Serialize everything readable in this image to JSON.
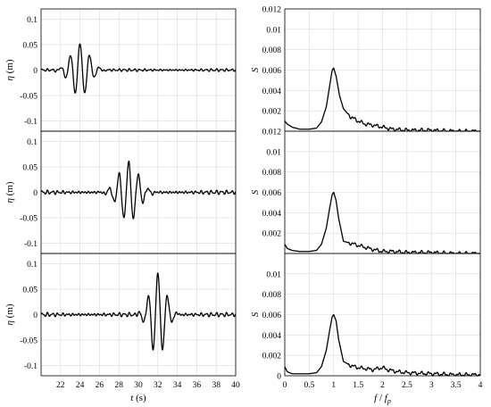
{
  "chart_data": [
    {
      "id": "time-1",
      "type": "line",
      "ylabel_sym": "η",
      "ylabel_unit": " (m)",
      "xlabel": "",
      "xlabel_unit": "",
      "xlim": [
        20,
        40
      ],
      "ylim": [
        -0.12,
        0.12
      ],
      "xticks": [
        22,
        24,
        26,
        28,
        30,
        32,
        34,
        36,
        38,
        40
      ],
      "yticks": [
        -0.1,
        -0.05,
        0,
        0.05,
        0.1
      ],
      "xticklabels": [],
      "yticklabels": [
        "-0.1",
        "-0.05",
        "0",
        "0.05",
        "0.1"
      ],
      "packet": {
        "amp": 0.052,
        "center": 24.0,
        "width": 1.3,
        "freq": 1.0,
        "noise": 0.002
      },
      "x": [
        20,
        21,
        22,
        22.5,
        23,
        23.5,
        24,
        24.5,
        25,
        25.5,
        26,
        26.5,
        27,
        28,
        30,
        34,
        40
      ],
      "y": [
        0.012,
        -0.01,
        0.022,
        -0.028,
        0.044,
        -0.04,
        0.055,
        -0.038,
        0.05,
        -0.032,
        0.028,
        -0.018,
        0.01,
        0.003,
        0.001,
        0.001,
        0.0
      ]
    },
    {
      "id": "time-2",
      "type": "line",
      "ylabel_sym": "η",
      "ylabel_unit": " (m)",
      "xlabel": "",
      "xlabel_unit": "",
      "xlim": [
        20,
        40
      ],
      "ylim": [
        -0.12,
        0.12
      ],
      "xticks": [
        22,
        24,
        26,
        28,
        30,
        32,
        34,
        36,
        38,
        40
      ],
      "yticks": [
        -0.1,
        -0.05,
        0,
        0.05,
        0.1
      ],
      "xticklabels": [],
      "yticklabels": [
        "-0.1",
        "-0.05",
        "0",
        "0.05",
        "0.1"
      ],
      "packet": {
        "amp": 0.058,
        "center": 29.0,
        "width": 1.4,
        "freq": 1.0,
        "noise": 0.003
      },
      "x": [
        20,
        24,
        26,
        27,
        27.5,
        28,
        28.5,
        29,
        29.5,
        30,
        30.5,
        31,
        32,
        36,
        40
      ],
      "y": [
        0.0,
        0.002,
        0.01,
        0.02,
        -0.02,
        0.045,
        -0.045,
        0.06,
        -0.04,
        0.04,
        -0.025,
        0.015,
        0.008,
        0.004,
        0.002
      ]
    },
    {
      "id": "time-3",
      "type": "line",
      "ylabel_sym": "η",
      "ylabel_unit": " (m)",
      "xlabel": "t",
      "xlabel_unit": " (s)",
      "xlim": [
        20,
        40
      ],
      "ylim": [
        -0.12,
        0.12
      ],
      "xticks": [
        22,
        24,
        26,
        28,
        30,
        32,
        34,
        36,
        38,
        40
      ],
      "yticks": [
        -0.1,
        -0.05,
        0,
        0.05,
        0.1
      ],
      "xticklabels": [
        "22",
        "24",
        "26",
        "28",
        "30",
        "32",
        "34",
        "36",
        "38",
        "40"
      ],
      "yticklabels": [
        "-0.1",
        "-0.05",
        "0",
        "0.05",
        "0.1"
      ],
      "packet": {
        "amp": 0.082,
        "center": 32.0,
        "width": 1.1,
        "freq": 1.0,
        "noise": 0.003
      },
      "x": [
        20,
        26,
        28,
        29,
        30,
        31,
        31.5,
        32,
        32.5,
        33,
        34,
        35,
        40
      ],
      "y": [
        0.0,
        0.002,
        0.01,
        0.015,
        0.025,
        -0.035,
        0.045,
        0.082,
        -0.035,
        0.035,
        -0.018,
        0.01,
        0.0
      ]
    },
    {
      "id": "spec-1",
      "type": "line",
      "ylabel_sym": "S",
      "ylabel_unit": "",
      "xlabel": "",
      "xlabel_unit": "",
      "xlim": [
        0,
        4
      ],
      "ylim": [
        0,
        0.012
      ],
      "xticks": [
        0,
        0.5,
        1,
        1.5,
        2,
        2.5,
        3,
        3.5,
        4
      ],
      "yticks": [
        0,
        0.002,
        0.004,
        0.006,
        0.008,
        0.01,
        0.012
      ],
      "xticklabels": [],
      "yticklabels": [
        "",
        "0.002",
        "0.004",
        "0.006",
        "0.008",
        "0.01",
        "0.012"
      ],
      "x": [
        0,
        0.05,
        0.15,
        0.3,
        0.5,
        0.65,
        0.75,
        0.85,
        0.92,
        0.97,
        1.0,
        1.05,
        1.12,
        1.2,
        1.35,
        1.5,
        1.65,
        1.8,
        2.0,
        2.2,
        2.5,
        3.0,
        3.5,
        4.0
      ],
      "y": [
        0.001,
        0.0007,
        0.0004,
        0.0002,
        0.0002,
        0.0003,
        0.0009,
        0.0024,
        0.0045,
        0.006,
        0.0062,
        0.0054,
        0.0035,
        0.0022,
        0.0014,
        0.001,
        0.0007,
        0.0006,
        0.0004,
        0.0002,
        0.0001,
        0.0001,
        0.0,
        0.0
      ]
    },
    {
      "id": "spec-2",
      "type": "line",
      "ylabel_sym": "S",
      "ylabel_unit": "",
      "xlabel": "",
      "xlabel_unit": "",
      "xlim": [
        0,
        4
      ],
      "ylim": [
        0,
        0.012
      ],
      "xticks": [
        0,
        0.5,
        1,
        1.5,
        2,
        2.5,
        3,
        3.5,
        4
      ],
      "yticks": [
        0,
        0.002,
        0.004,
        0.006,
        0.008,
        0.01,
        0.012
      ],
      "xticklabels": [],
      "yticklabels": [
        "",
        "0.002",
        "0.004",
        "0.006",
        "0.008",
        "0.01",
        "0.012"
      ],
      "x": [
        0,
        0.05,
        0.15,
        0.3,
        0.5,
        0.65,
        0.75,
        0.85,
        0.92,
        0.97,
        1.0,
        1.05,
        1.1,
        1.2,
        1.35,
        1.5,
        1.65,
        1.8,
        2.0,
        2.2,
        2.5,
        3.0,
        3.5,
        4.0
      ],
      "y": [
        0.0009,
        0.0005,
        0.0003,
        0.0002,
        0.0002,
        0.0003,
        0.0009,
        0.0025,
        0.0045,
        0.0058,
        0.006,
        0.0052,
        0.0035,
        0.0012,
        0.001,
        0.0008,
        0.0006,
        0.0004,
        0.0002,
        0.0002,
        0.0001,
        0.0001,
        0.0,
        0.0
      ]
    },
    {
      "id": "spec-3",
      "type": "line",
      "ylabel_sym": "S",
      "ylabel_unit": "",
      "xlabel": "f",
      "xlabel_unit": "",
      "xlabel_den": "f",
      "xlabel_sub": "p",
      "xlim": [
        0,
        4
      ],
      "ylim": [
        0,
        0.012
      ],
      "xticks": [
        0,
        0.5,
        1,
        1.5,
        2,
        2.5,
        3,
        3.5,
        4
      ],
      "yticks": [
        0,
        0.002,
        0.004,
        0.006,
        0.008,
        0.01,
        0.012
      ],
      "xticklabels": [
        "0",
        "0.5",
        "1",
        "1.5",
        "2",
        "2.5",
        "3",
        "3.5",
        "4"
      ],
      "yticklabels": [
        "0",
        "0.002",
        "0.004",
        "0.006",
        "0.008",
        "0.01",
        ""
      ],
      "x": [
        0,
        0.05,
        0.15,
        0.3,
        0.5,
        0.65,
        0.75,
        0.85,
        0.92,
        0.97,
        1.0,
        1.05,
        1.1,
        1.2,
        1.35,
        1.5,
        1.65,
        1.8,
        2.0,
        2.1,
        2.3,
        2.5,
        3.0,
        3.5,
        4.0
      ],
      "y": [
        0.0009,
        0.0004,
        0.0002,
        0.0002,
        0.0002,
        0.0003,
        0.0009,
        0.0025,
        0.0045,
        0.0058,
        0.006,
        0.0054,
        0.0036,
        0.0014,
        0.001,
        0.0008,
        0.0007,
        0.0006,
        0.0008,
        0.0006,
        0.0004,
        0.0003,
        0.0002,
        0.0001,
        0.0001
      ]
    }
  ]
}
